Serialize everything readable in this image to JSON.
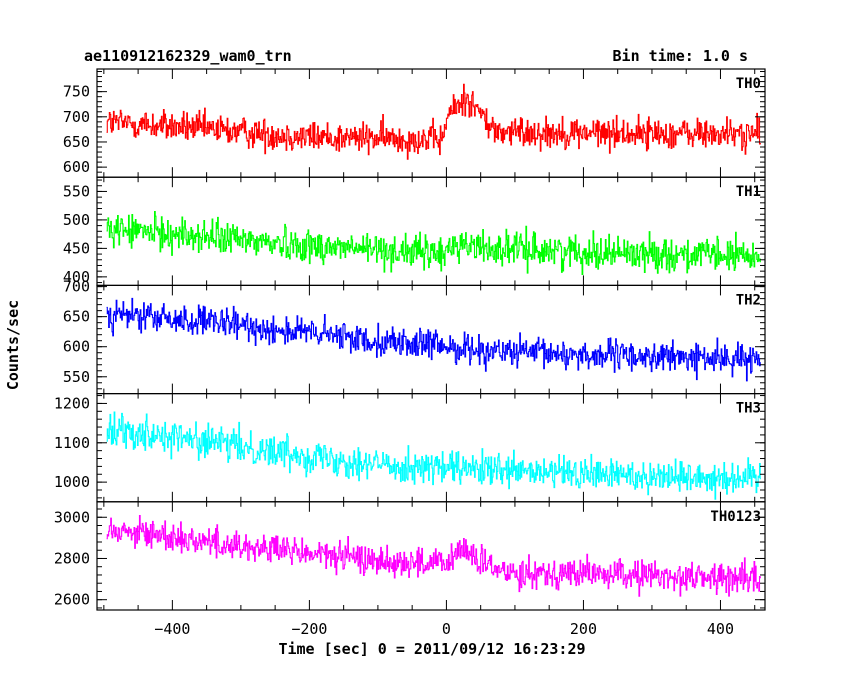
{
  "header": {
    "left_title": "ae110912162329_wam0_trn",
    "right_title": "Bin time: 1.0 s"
  },
  "chart_data": {
    "type": "line",
    "title": "ae110912162329_wam0_trn",
    "subtitle": "Bin time: 1.0 s",
    "xlabel": "Time [sec] 0 = 2011/09/12 16:23:29",
    "ylabel": "Counts/sec",
    "xlim": [
      -510,
      465
    ],
    "data_x_range": [
      -496,
      458
    ],
    "bin_time_s": 1.0,
    "x_ticks": [
      -400,
      -200,
      0,
      200,
      400
    ],
    "grid": false,
    "legend": "none",
    "panels": [
      {
        "name": "TH0",
        "color": "#ff0000",
        "ylim": [
          580,
          795
        ],
        "y_ticks": [
          600,
          650,
          700,
          750
        ],
        "trend": [
          [
            -496,
            690
          ],
          [
            -200,
            660
          ],
          [
            -5,
            655
          ],
          [
            0,
            700
          ],
          [
            30,
            740
          ],
          [
            70,
            670
          ],
          [
            458,
            665
          ]
        ],
        "noise_amplitude": 40
      },
      {
        "name": "TH1",
        "color": "#00ff00",
        "ylim": [
          385,
          575
        ],
        "y_ticks": [
          400,
          450,
          500,
          550
        ],
        "trend": [
          [
            -496,
            485
          ],
          [
            -400,
            475
          ],
          [
            -200,
            455
          ],
          [
            0,
            440
          ],
          [
            10,
            460
          ],
          [
            60,
            450
          ],
          [
            458,
            435
          ]
        ],
        "noise_amplitude": 38
      },
      {
        "name": "TH2",
        "color": "#0000ff",
        "ylim": [
          522,
          702
        ],
        "y_ticks": [
          550,
          600,
          650,
          700
        ],
        "trend": [
          [
            -496,
            655
          ],
          [
            -300,
            635
          ],
          [
            -100,
            610
          ],
          [
            100,
            590
          ],
          [
            458,
            578
          ]
        ],
        "noise_amplitude": 32
      },
      {
        "name": "TH3",
        "color": "#00ffff",
        "ylim": [
          950,
          1225
        ],
        "y_ticks": [
          1000,
          1100,
          1200
        ],
        "trend": [
          [
            -496,
            1140
          ],
          [
            -300,
            1090
          ],
          [
            -100,
            1045
          ],
          [
            100,
            1025
          ],
          [
            458,
            1010
          ]
        ],
        "noise_amplitude": 55
      },
      {
        "name": "TH0123",
        "color": "#ff00ff",
        "ylim": [
          2550,
          3075
        ],
        "y_ticks": [
          2600,
          2800,
          3000
        ],
        "trend": [
          [
            -496,
            2950
          ],
          [
            -300,
            2860
          ],
          [
            -100,
            2790
          ],
          [
            0,
            2770
          ],
          [
            20,
            2850
          ],
          [
            70,
            2740
          ],
          [
            458,
            2700
          ]
        ],
        "noise_amplitude": 95
      }
    ]
  }
}
